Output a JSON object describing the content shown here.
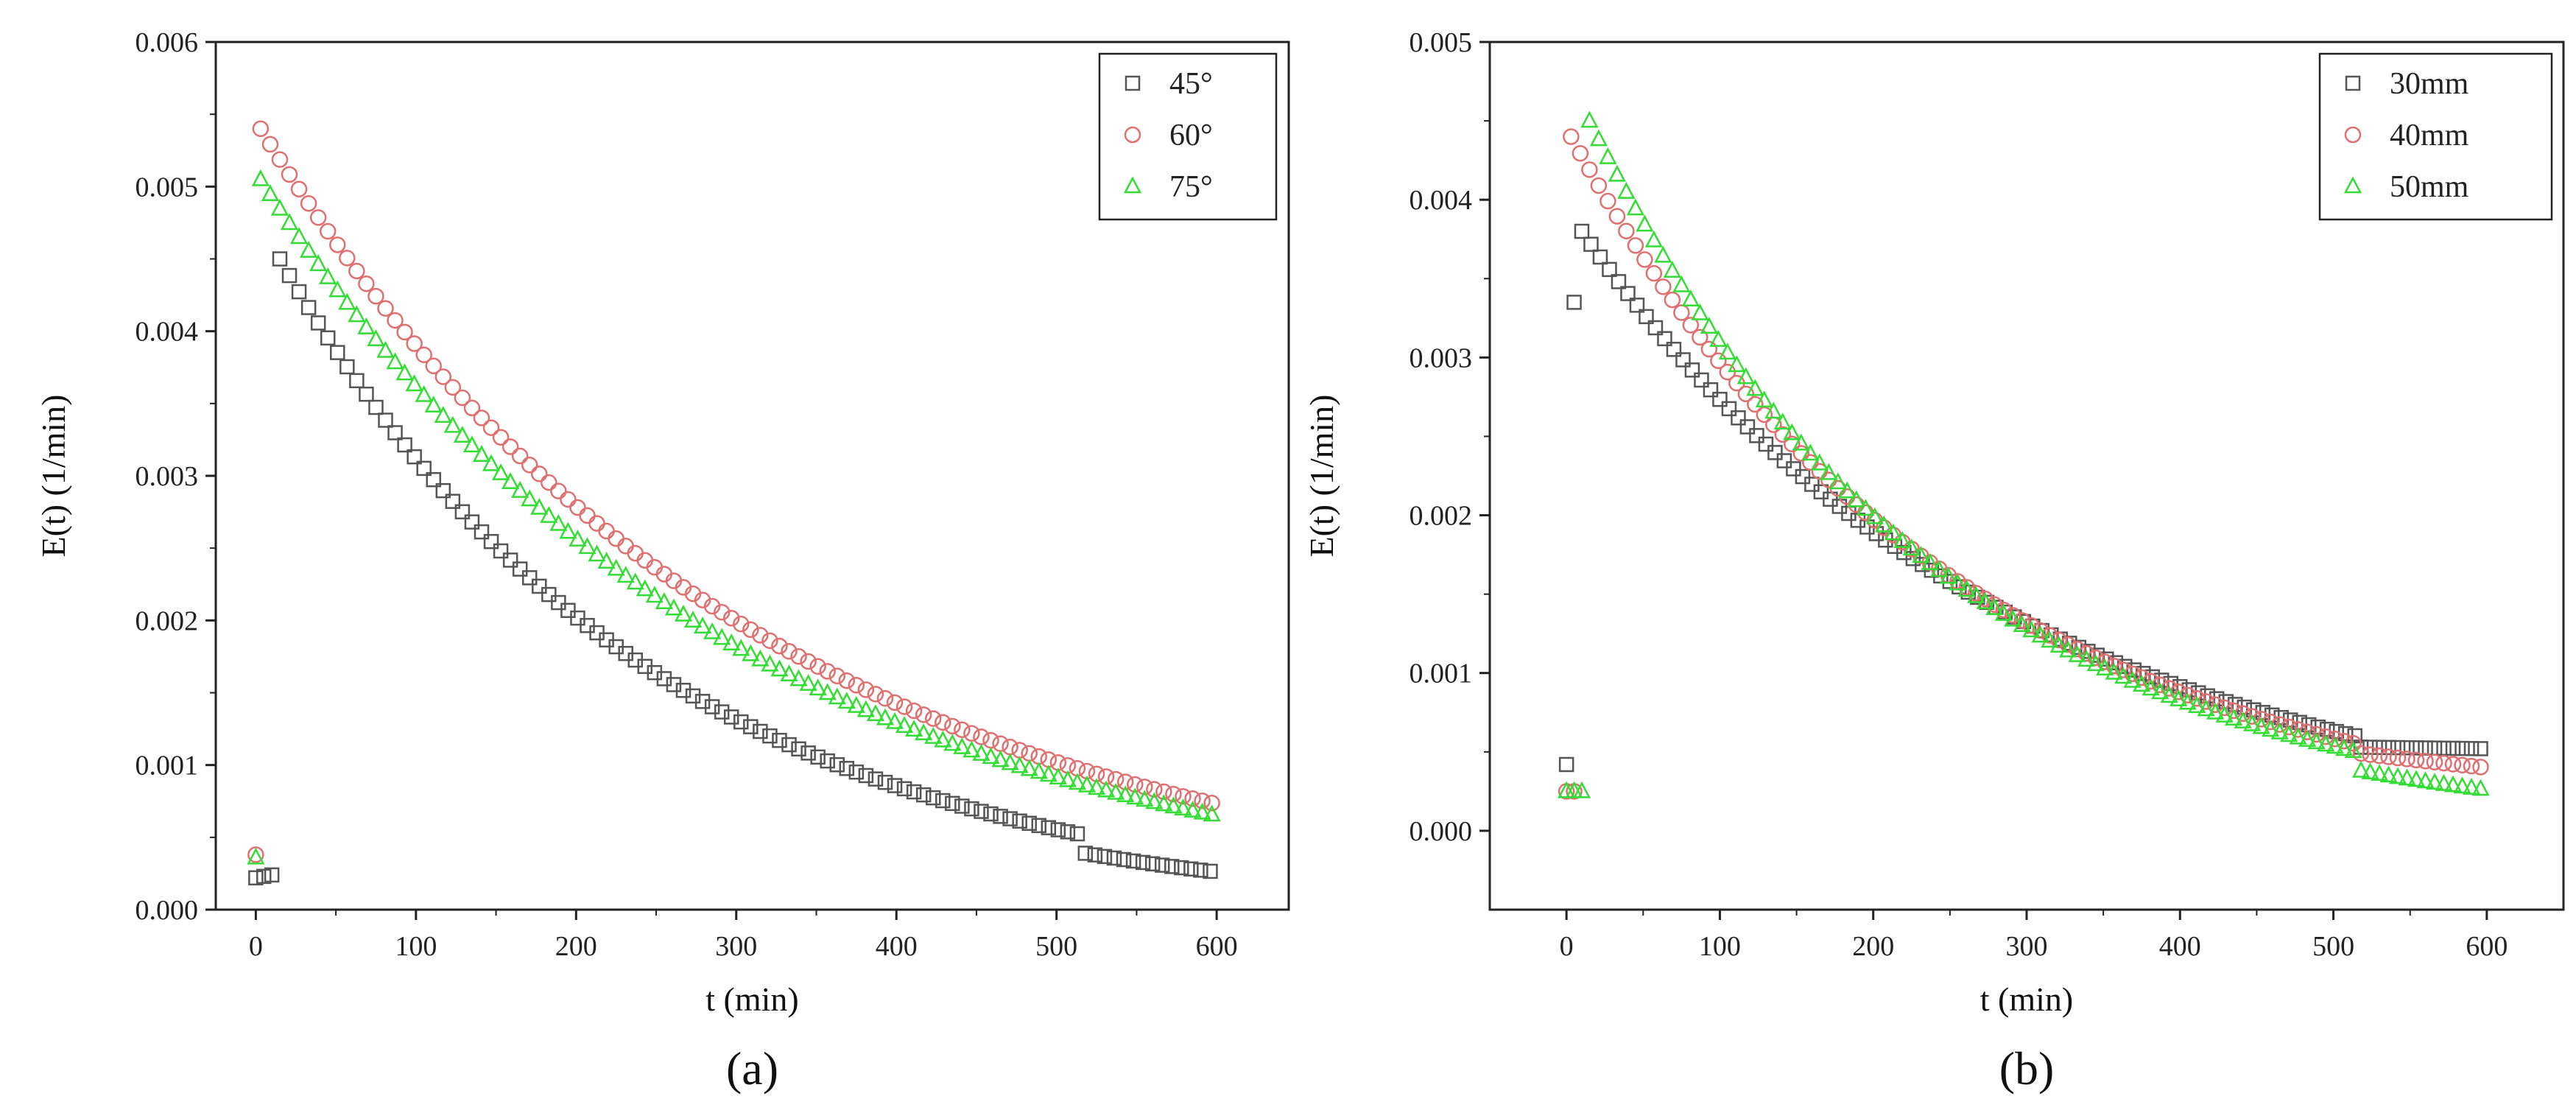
{
  "chart_data": [
    {
      "type": "scatter",
      "panel_label": "(a)",
      "xlabel": "t (min)",
      "ylabel": "E(t) (1/min)",
      "xlim": [
        -25,
        645
      ],
      "ylim": [
        0,
        0.006
      ],
      "xticks": [
        0,
        100,
        200,
        300,
        400,
        500,
        600
      ],
      "yticks": [
        0.0,
        0.001,
        0.002,
        0.003,
        0.004,
        0.005,
        0.006
      ],
      "ytick_labels": [
        "0.000",
        "0.001",
        "0.002",
        "0.003",
        "0.004",
        "0.005",
        "0.006"
      ],
      "legend_position": "top-right",
      "series": [
        {
          "name": "45°",
          "marker": "square",
          "color": "#555555",
          "points": [
            [
              0,
              0.00022
            ],
            [
              5,
              0.00023
            ],
            [
              10,
              0.00024
            ]
          ],
          "curve": {
            "t_start": 15,
            "t_end": 515,
            "step": 6,
            "y_start": 0.0045,
            "y_end": 0.00052
          },
          "tail": {
            "t_start": 518,
            "t_end": 600,
            "step": 6,
            "y_start": 0.00039,
            "y_end": 0.00026
          }
        },
        {
          "name": "60°",
          "marker": "circle",
          "color": "#e07070",
          "points": [
            [
              0,
              0.00038
            ]
          ],
          "curve": {
            "t_start": 3,
            "t_end": 600,
            "step": 6,
            "y_start": 0.0054,
            "y_end": 0.00073
          }
        },
        {
          "name": "75°",
          "marker": "triangle",
          "color": "#33dd33",
          "points": [
            [
              0,
              0.00036
            ]
          ],
          "curve": {
            "t_start": 3,
            "t_end": 600,
            "step": 6,
            "y_start": 0.00505,
            "y_end": 0.00065
          }
        }
      ]
    },
    {
      "type": "scatter",
      "panel_label": "(b)",
      "xlabel": "t (min)",
      "ylabel": "E(t) (1/min)",
      "xlim": [
        -50,
        650
      ],
      "ylim": [
        -0.0005,
        0.005
      ],
      "xticks": [
        0,
        100,
        200,
        300,
        400,
        500,
        600
      ],
      "yticks": [
        0.0,
        0.001,
        0.002,
        0.003,
        0.004,
        0.005
      ],
      "ytick_labels": [
        "0.000",
        "0.001",
        "0.002",
        "0.003",
        "0.004",
        "0.005"
      ],
      "legend_position": "top-right",
      "series": [
        {
          "name": "30mm",
          "marker": "square",
          "color": "#555555",
          "points": [
            [
              0,
              0.00042
            ],
            [
              5,
              0.00335
            ]
          ],
          "curve": {
            "t_start": 10,
            "t_end": 515,
            "step": 6,
            "y_start": 0.0038,
            "y_end": 0.0006
          },
          "tail": {
            "t_start": 518,
            "t_end": 600,
            "step": 6,
            "y_start": 0.00053,
            "y_end": 0.00052
          }
        },
        {
          "name": "40mm",
          "marker": "circle",
          "color": "#e07070",
          "points": [
            [
              0,
              0.00025
            ],
            [
              5,
              0.00025
            ]
          ],
          "curve": {
            "t_start": 3,
            "t_end": 515,
            "step": 6,
            "y_start": 0.0044,
            "y_end": 0.00055
          },
          "tail": {
            "t_start": 518,
            "t_end": 600,
            "step": 6,
            "y_start": 0.00049,
            "y_end": 0.0004
          }
        },
        {
          "name": "50mm",
          "marker": "triangle",
          "color": "#33dd33",
          "points": [
            [
              0,
              0.00025
            ],
            [
              5,
              0.00025
            ],
            [
              10,
              0.00025
            ]
          ],
          "curve": {
            "t_start": 15,
            "t_end": 515,
            "step": 6,
            "y_start": 0.0045,
            "y_end": 0.0005
          },
          "tail": {
            "t_start": 518,
            "t_end": 600,
            "step": 6,
            "y_start": 0.00038,
            "y_end": 0.00026
          }
        }
      ]
    }
  ]
}
